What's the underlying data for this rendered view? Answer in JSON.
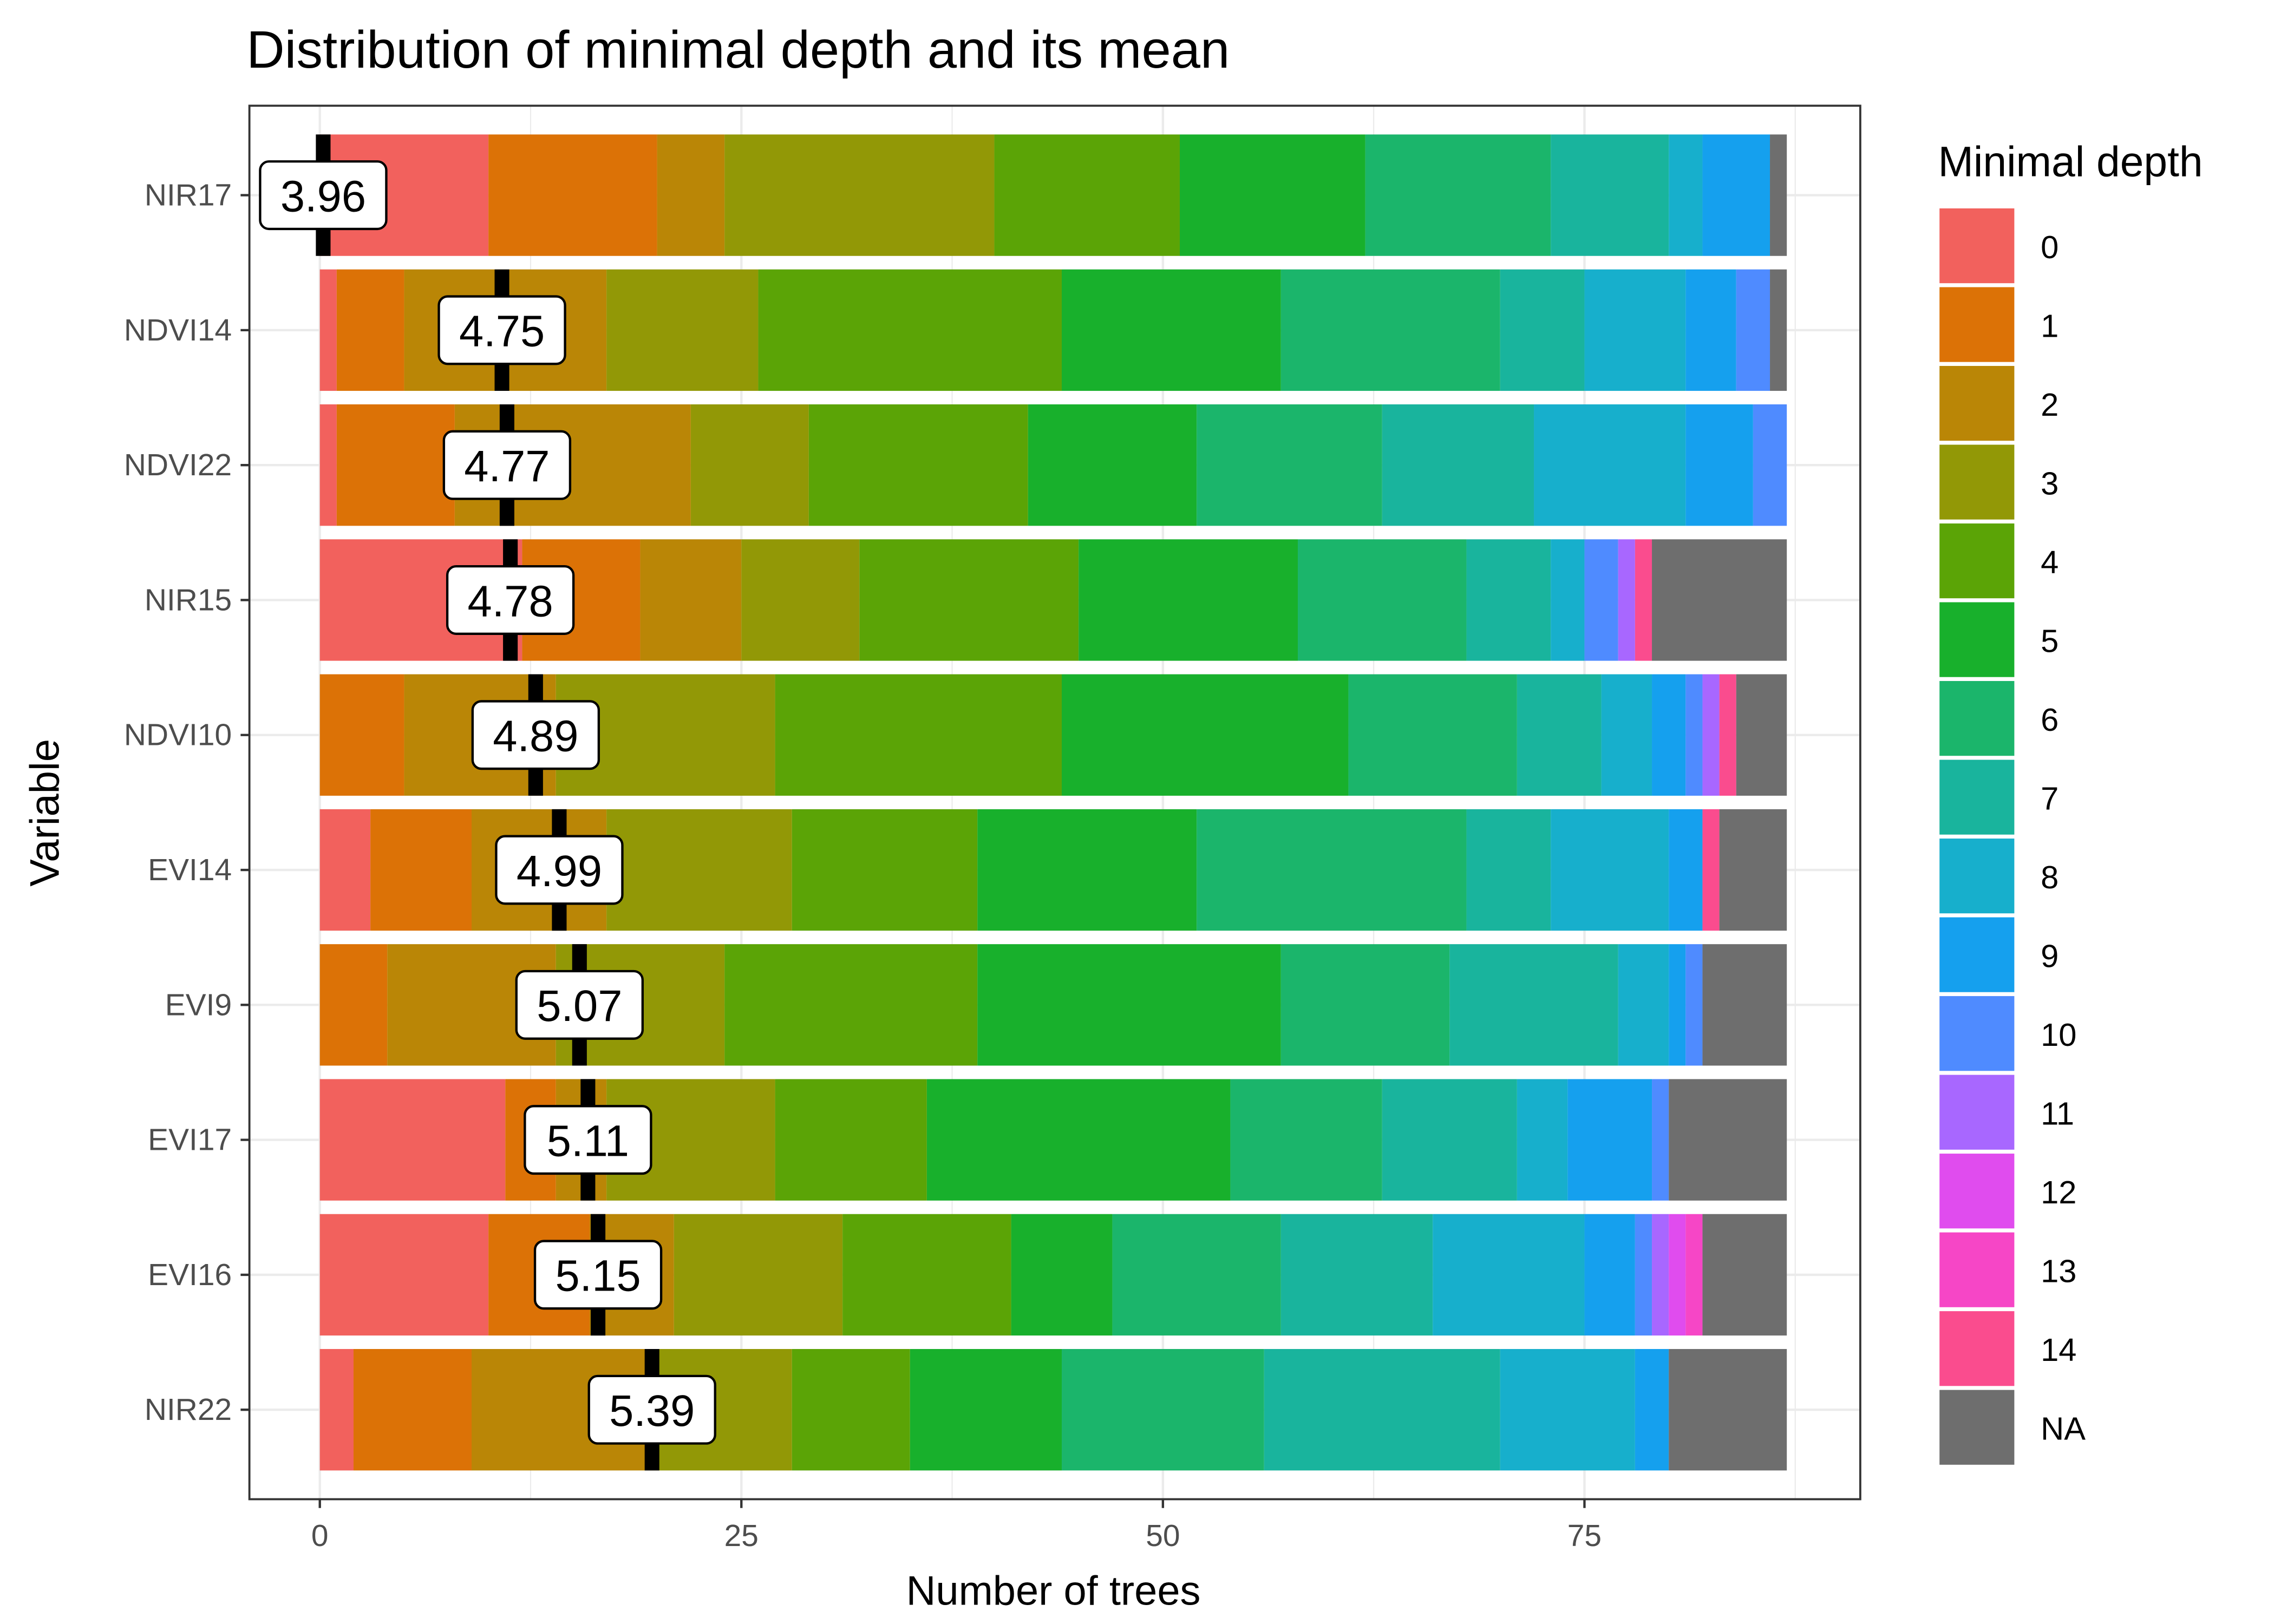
{
  "chart_data": {
    "type": "bar",
    "orientation": "horizontal",
    "stacked": true,
    "title": "Distribution of minimal depth and its mean",
    "xlabel": "Number of trees",
    "ylabel": "Variable",
    "xlim": [
      0,
      87
    ],
    "xticks": [
      0,
      25,
      50,
      75
    ],
    "xtick_labels": [
      "0",
      "25",
      "50",
      "75"
    ],
    "grid": true,
    "legend": {
      "title": "Minimal depth",
      "placement": "right",
      "entries": [
        "0",
        "1",
        "2",
        "3",
        "4",
        "5",
        "6",
        "7",
        "8",
        "9",
        "10",
        "11",
        "12",
        "13",
        "14",
        "NA"
      ],
      "colors": [
        "#F2615D",
        "#DC7206",
        "#BA8606",
        "#929806",
        "#5BA406",
        "#18B02C",
        "#1BB56B",
        "#19B49D",
        "#17AFCC",
        "#15A0EE",
        "#4F8BFF",
        "#A867FF",
        "#E04CEE",
        "#F646C6",
        "#FA4C8E",
        "#6E6E6E"
      ]
    },
    "categories": [
      "NIR17",
      "NDVI14",
      "NDVI22",
      "NIR15",
      "NDVI10",
      "EVI14",
      "EVI9",
      "EVI17",
      "EVI16",
      "NIR22"
    ],
    "mean_minimal_depth": [
      3.96,
      4.75,
      4.77,
      4.78,
      4.89,
      4.99,
      5.07,
      5.11,
      5.15,
      5.39
    ],
    "mean_labels": [
      "3.96",
      "4.75",
      "4.77",
      "4.78",
      "4.89",
      "4.99",
      "5.07",
      "5.11",
      "5.15",
      "5.39"
    ],
    "mean_marker_position": [
      0.2,
      10.8,
      11.1,
      11.3,
      12.8,
      14.2,
      15.4,
      15.9,
      16.5,
      19.7
    ],
    "counts": {
      "NIR17": {
        "0": 10,
        "1": 10,
        "2": 4,
        "3": 16,
        "4": 11,
        "5": 11,
        "6": 11,
        "7": 7,
        "8": 2,
        "9": 4,
        "NA": 1
      },
      "NDVI14": {
        "0": 1,
        "1": 4,
        "2": 12,
        "3": 9,
        "4": 18,
        "5": 13,
        "6": 13,
        "7": 5,
        "8": 6,
        "9": 3,
        "10": 2,
        "NA": 1
      },
      "NDVI22": {
        "0": 1,
        "1": 7,
        "2": 14,
        "3": 7,
        "4": 13,
        "5": 10,
        "6": 11,
        "7": 9,
        "8": 9,
        "9": 4,
        "10": 2
      },
      "NIR15": {
        "0": 12,
        "1": 7,
        "2": 6,
        "3": 7,
        "4": 13,
        "5": 13,
        "6": 10,
        "7": 5,
        "8": 2,
        "10": 2,
        "11": 1,
        "14": 1,
        "NA": 8
      },
      "NDVI10": {
        "1": 5,
        "2": 9,
        "3": 13,
        "4": 17,
        "5": 17,
        "6": 10,
        "7": 5,
        "8": 3,
        "9": 2,
        "10": 1,
        "11": 1,
        "14": 1,
        "NA": 3
      },
      "EVI14": {
        "0": 3,
        "1": 6,
        "2": 8,
        "3": 11,
        "4": 11,
        "5": 13,
        "6": 16,
        "7": 5,
        "8": 7,
        "9": 2,
        "14": 1,
        "NA": 4
      },
      "EVI9": {
        "1": 4,
        "2": 10,
        "3": 10,
        "4": 15,
        "5": 18,
        "6": 10,
        "7": 10,
        "8": 3,
        "9": 1,
        "10": 1,
        "NA": 5
      },
      "EVI17": {
        "0": 11,
        "1": 3,
        "2": 3,
        "3": 10,
        "4": 9,
        "5": 18,
        "6": 9,
        "7": 8,
        "8": 3,
        "9": 5,
        "10": 1,
        "NA": 7
      },
      "EVI16": {
        "0": 10,
        "1": 6,
        "2": 5,
        "3": 10,
        "4": 10,
        "5": 6,
        "6": 10,
        "7": 9,
        "8": 9,
        "9": 3,
        "10": 1,
        "11": 1,
        "12": 1,
        "13": 1,
        "NA": 5
      },
      "NIR22": {
        "0": 2,
        "1": 7,
        "2": 11,
        "3": 8,
        "4": 7,
        "5": 9,
        "6": 12,
        "7": 14,
        "8": 8,
        "9": 2,
        "NA": 7
      }
    }
  }
}
